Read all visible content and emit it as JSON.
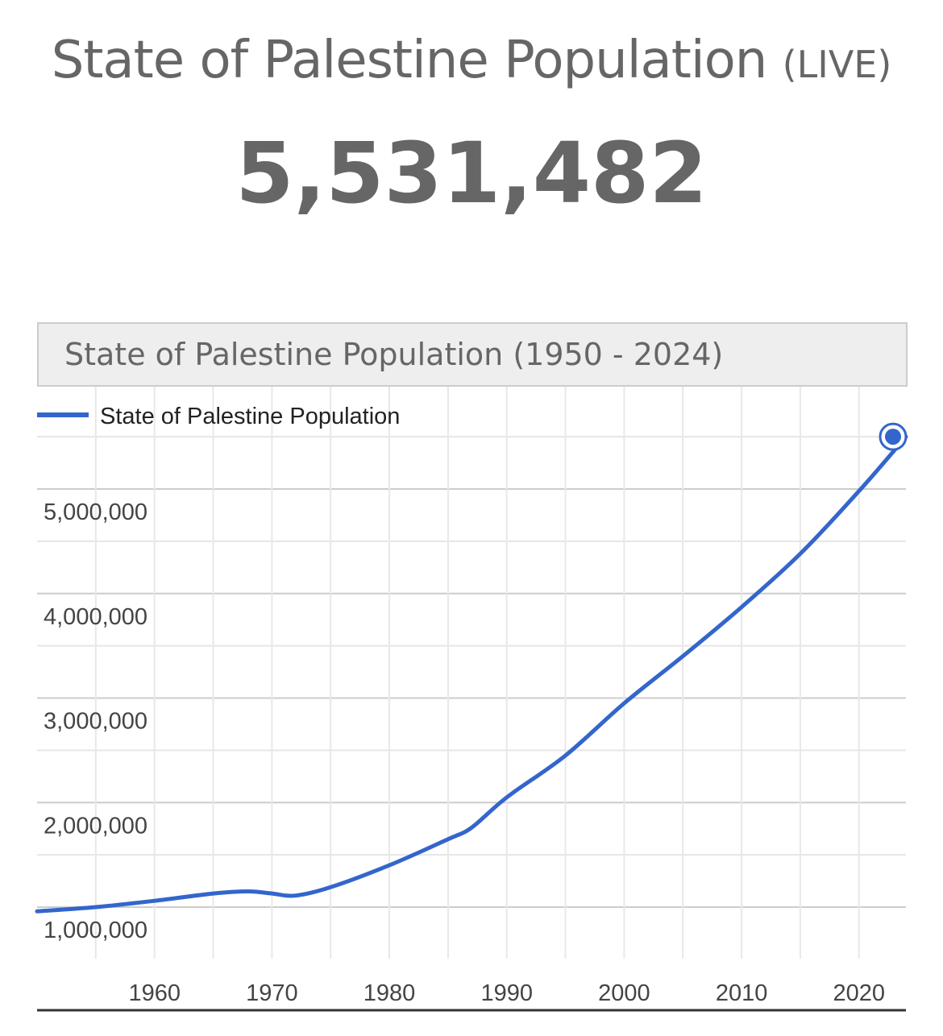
{
  "header": {
    "title": "State of Palestine Population",
    "title_suffix": "(LIVE)",
    "live_count": "5,531,482"
  },
  "chart_data": {
    "type": "line",
    "title": "State of Palestine Population (1950 - 2024)",
    "legend": {
      "position": "top-left",
      "entries": [
        "State of Palestine Population"
      ]
    },
    "series": [
      {
        "name": "State of Palestine Population",
        "color": "#3366cc",
        "x": [
          1950,
          1955,
          1960,
          1965,
          1968,
          1970,
          1972,
          1975,
          1980,
          1985,
          1987,
          1990,
          1995,
          2000,
          2005,
          2010,
          2015,
          2020,
          2024
        ],
        "y": [
          960000,
          1000000,
          1060000,
          1130000,
          1150000,
          1130000,
          1110000,
          1190000,
          1400000,
          1650000,
          1760000,
          2050000,
          2450000,
          2950000,
          3400000,
          3870000,
          4380000,
          4980000,
          5500000
        ]
      }
    ],
    "highlight_point": {
      "x": 2024,
      "y": 5500000
    },
    "x_ticks": [
      "1960",
      "1970",
      "1980",
      "1990",
      "2000",
      "2010",
      "2020"
    ],
    "x_tick_values": [
      1960,
      1970,
      1980,
      1990,
      2000,
      2010,
      2020
    ],
    "y_ticks": [
      "1,000,000",
      "2,000,000",
      "3,000,000",
      "4,000,000",
      "5,000,000"
    ],
    "y_tick_values": [
      1000000,
      2000000,
      3000000,
      4000000,
      5000000
    ],
    "xlim": [
      1950,
      2024
    ],
    "grid": true
  }
}
